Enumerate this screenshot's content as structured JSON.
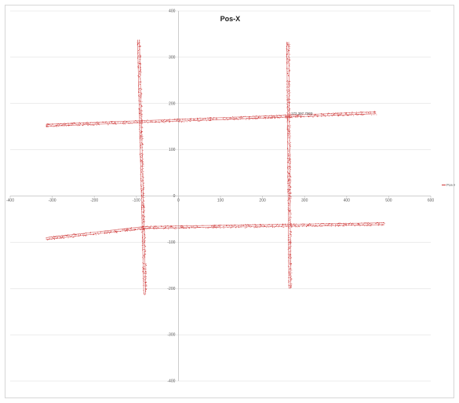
{
  "chart_data": {
    "type": "scatter",
    "title": "Pos-X",
    "xlim": [
      -400,
      600
    ],
    "ylim": [
      -400,
      400
    ],
    "x_ticks": [
      -400,
      -300,
      -200,
      -100,
      0,
      100,
      200,
      300,
      400,
      500,
      600
    ],
    "y_ticks": [
      -400,
      -300,
      -200,
      -100,
      0,
      100,
      200,
      300,
      400
    ],
    "grid": true,
    "legend_position": "right",
    "series": [
      {
        "name": "Pos-X",
        "color": "#c00000",
        "segments": [
          {
            "x": [
              -315,
              470
            ],
            "y": [
              153,
              180
            ]
          },
          {
            "x": [
              -315,
              -80
            ],
            "y": [
              -92,
              -68
            ]
          },
          {
            "x": [
              -80,
              490
            ],
            "y": [
              -68,
              -60
            ]
          },
          {
            "x": [
              -95,
              -80
            ],
            "y": [
              338,
              -213
            ]
          },
          {
            "x": [
              260,
              265
            ],
            "y": [
              333,
              -200
            ]
          }
        ]
      }
    ],
    "annotations": [
      {
        "text": "172.397,7203",
        "x": 262,
        "y": 172
      }
    ]
  }
}
